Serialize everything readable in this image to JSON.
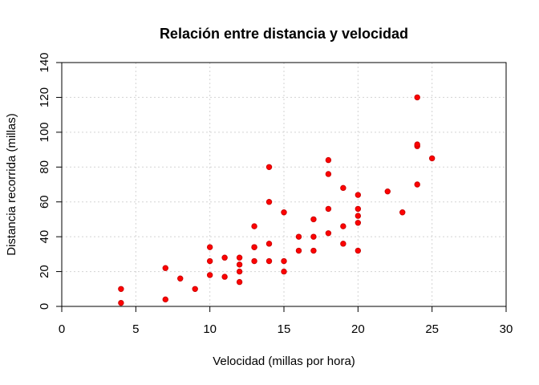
{
  "chart_data": {
    "type": "scatter",
    "title": "Relación entre distancia y velocidad",
    "xlabel": "Velocidad (millas por hora)",
    "ylabel": "Distancia recorrida (millas)",
    "xlim": [
      0,
      30
    ],
    "ylim": [
      0,
      140
    ],
    "xticks": [
      0,
      5,
      10,
      15,
      20,
      25,
      30
    ],
    "yticks": [
      0,
      20,
      40,
      60,
      80,
      100,
      120,
      140
    ],
    "grid": true,
    "marker_color": "#ff0000",
    "x": [
      4,
      4,
      7,
      7,
      8,
      9,
      10,
      10,
      10,
      11,
      11,
      12,
      12,
      12,
      12,
      13,
      13,
      13,
      13,
      14,
      14,
      14,
      14,
      15,
      15,
      15,
      16,
      16,
      17,
      17,
      17,
      18,
      18,
      18,
      18,
      19,
      19,
      19,
      20,
      20,
      20,
      20,
      20,
      22,
      23,
      24,
      24,
      24,
      24,
      25
    ],
    "y": [
      2,
      10,
      4,
      22,
      16,
      10,
      18,
      26,
      34,
      17,
      28,
      14,
      20,
      24,
      28,
      26,
      34,
      34,
      46,
      26,
      36,
      60,
      80,
      20,
      26,
      54,
      32,
      40,
      32,
      40,
      50,
      42,
      56,
      76,
      84,
      36,
      46,
      68,
      32,
      48,
      52,
      56,
      64,
      66,
      54,
      70,
      92,
      93,
      120,
      85
    ]
  }
}
